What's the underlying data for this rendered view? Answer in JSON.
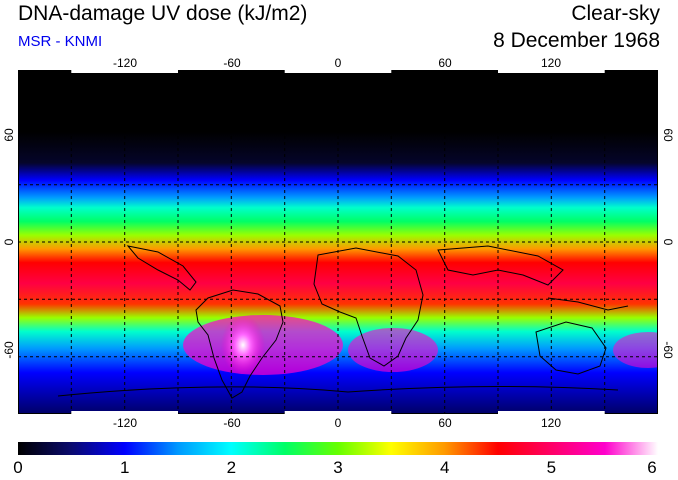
{
  "header": {
    "title": "DNA-damage UV dose (kJ/m2)",
    "source": "MSR - KNMI",
    "condition": "Clear-sky",
    "date": "8 December 1968"
  },
  "map": {
    "lon_ticks": [
      "-120",
      "-60",
      "0",
      "60",
      "120"
    ],
    "lat_ticks": [
      "60",
      "0",
      "-60"
    ],
    "lon_range": [
      -180,
      180
    ],
    "lat_range": [
      -90,
      90
    ],
    "grid": true,
    "grid_step_lon": 30,
    "grid_step_lat": 30
  },
  "colorbar": {
    "min": 0,
    "max": 6,
    "labels": [
      "0",
      "1",
      "2",
      "3",
      "4",
      "5",
      "6"
    ],
    "colors": [
      "#000000",
      "#0a0a6e",
      "#0000ff",
      "#0099ff",
      "#00ffff",
      "#00ff66",
      "#66ff00",
      "#ffff00",
      "#ff9900",
      "#ff0000",
      "#ff0066",
      "#ff00cc",
      "#ffffff"
    ]
  }
}
